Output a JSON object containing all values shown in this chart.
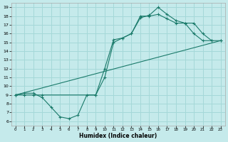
{
  "bg_color": "#c5eaeb",
  "grid_color": "#a5d8d8",
  "line_color": "#1a7a6a",
  "xlim": [
    -0.5,
    23.5
  ],
  "ylim": [
    5.5,
    19.5
  ],
  "yticks": [
    6,
    7,
    8,
    9,
    10,
    11,
    12,
    13,
    14,
    15,
    16,
    17,
    18,
    19
  ],
  "xticks": [
    0,
    1,
    2,
    3,
    4,
    5,
    6,
    7,
    8,
    9,
    10,
    11,
    12,
    13,
    14,
    15,
    16,
    17,
    18,
    19,
    20,
    21,
    22,
    23
  ],
  "xlabel": "Humidex (Indice chaleur)",
  "line1_x": [
    0,
    1,
    2,
    3,
    4,
    5,
    6,
    7,
    8,
    9,
    10,
    11,
    12,
    13,
    14,
    15,
    16,
    17,
    18,
    19,
    20,
    21,
    22
  ],
  "line1_y": [
    9.0,
    9.2,
    9.2,
    8.7,
    7.6,
    6.5,
    6.3,
    6.7,
    9.0,
    9.0,
    12.0,
    15.3,
    15.5,
    16.0,
    17.8,
    18.1,
    19.0,
    18.2,
    17.5,
    17.2,
    16.0,
    15.2,
    15.2
  ],
  "line2_x": [
    0,
    1,
    2,
    3,
    9,
    10,
    11,
    12,
    13,
    14,
    15,
    16,
    17,
    18,
    19,
    20,
    21,
    22,
    23
  ],
  "line2_y": [
    9.0,
    9.0,
    9.0,
    9.0,
    9.0,
    11.0,
    15.0,
    15.5,
    16.0,
    18.0,
    18.0,
    18.2,
    17.7,
    17.2,
    17.2,
    17.2,
    16.0,
    15.2,
    15.2
  ],
  "line3_x": [
    0,
    23
  ],
  "line3_y": [
    9.0,
    15.2
  ]
}
